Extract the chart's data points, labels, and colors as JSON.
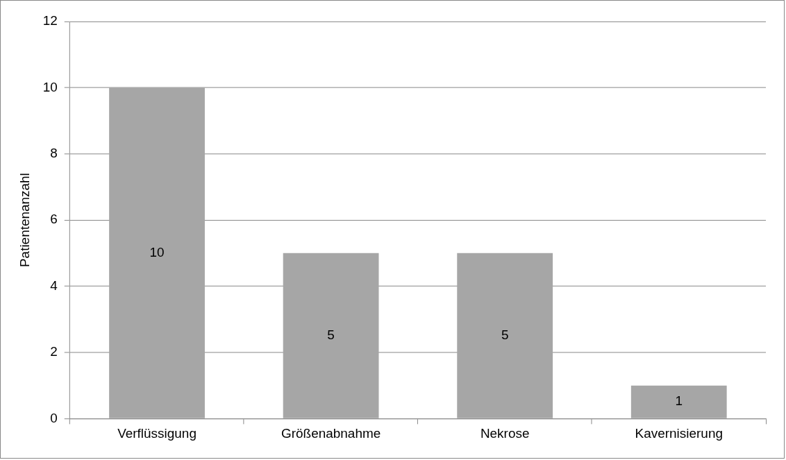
{
  "chart_data": {
    "type": "bar",
    "ylabel": "Patientenanzahl",
    "categories": [
      "Verflüssigung",
      "Größenabnahme",
      "Nekrose",
      "Kavernisierung"
    ],
    "values": [
      10,
      5,
      5,
      1
    ],
    "color": "#a6a6a6",
    "ylim": [
      0,
      12
    ],
    "yticks": [
      0,
      2,
      4,
      6,
      8,
      10,
      12
    ],
    "grid": "y",
    "data_labels": true,
    "legend": false
  }
}
